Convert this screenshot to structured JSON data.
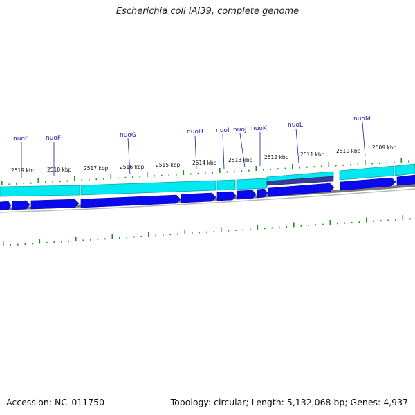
{
  "title": "Escherichia coli IAI39, complete genome",
  "accession": "Accession: NC_011750",
  "summary": "Topology: circular; Length: 5,132,068 bp; Genes: 4,937",
  "colors": {
    "gene_label": "#1a1aa6",
    "cds_forward": "#0a0aee",
    "cds_dark": "#1a1a8a",
    "gene_track": "#00e8f0",
    "gene_track_edge": "#1aa0a8",
    "backbone": "#7a7a7a",
    "ticks": "#228b22"
  },
  "genes": [
    {
      "name": "nuoE",
      "label": "nuoE"
    },
    {
      "name": "nuoF",
      "label": "nuoF"
    },
    {
      "name": "nuoG",
      "label": "nuoG"
    },
    {
      "name": "nuoH",
      "label": "nuoH"
    },
    {
      "name": "nuoI",
      "label": "nuoI"
    },
    {
      "name": "nuoJ",
      "label": "nuoJ"
    },
    {
      "name": "nuoK",
      "label": "nuoK"
    },
    {
      "name": "nuoL",
      "label": "nuoL"
    },
    {
      "name": "nuoM",
      "label": "nuoM"
    }
  ],
  "kbp_ticks": [
    "2519 kbp",
    "2518 kbp",
    "2517 kbp",
    "2516 kbp",
    "2515 kbp",
    "2514 kbp",
    "2513 kbp",
    "2512 kbp",
    "2511 kbp",
    "2510 kbp",
    "2509 kbp"
  ]
}
